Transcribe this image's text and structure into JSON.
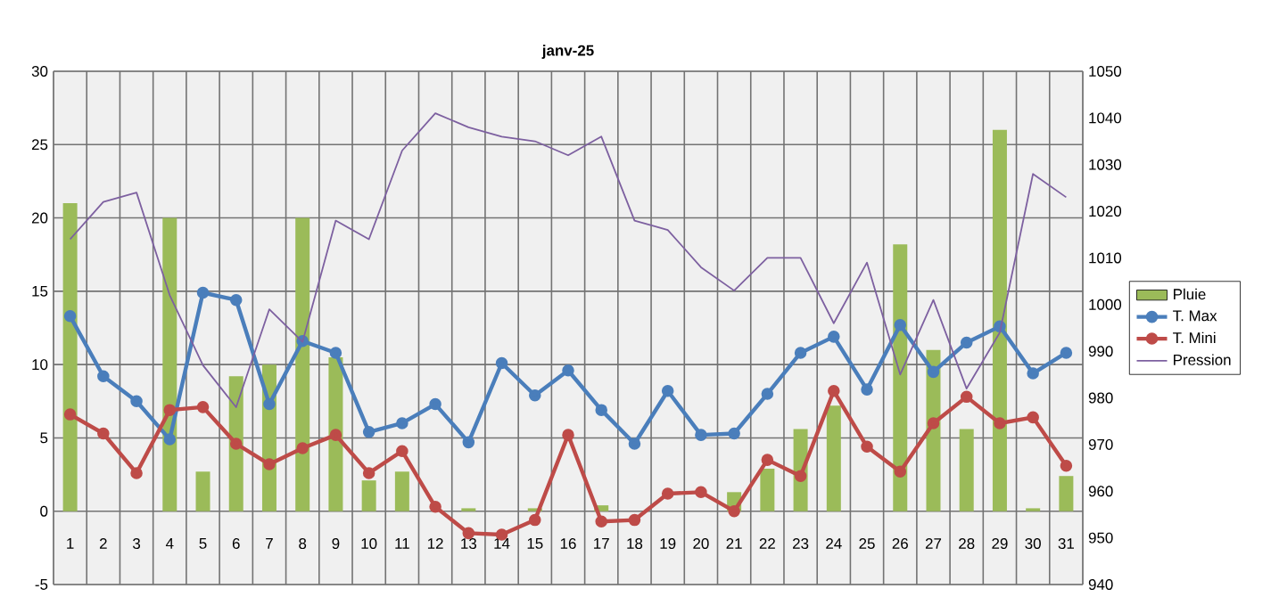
{
  "chart_data": {
    "type": "bar",
    "title": "janv-25",
    "categories": [
      "1",
      "2",
      "3",
      "4",
      "5",
      "6",
      "7",
      "8",
      "9",
      "10",
      "11",
      "12",
      "13",
      "14",
      "15",
      "16",
      "17",
      "18",
      "19",
      "20",
      "21",
      "22",
      "23",
      "24",
      "25",
      "26",
      "27",
      "28",
      "29",
      "30",
      "31"
    ],
    "series": [
      {
        "name": "Pluie",
        "color": "#9bbb59",
        "values": [
          21,
          0,
          0,
          20,
          2.7,
          9.2,
          10,
          20,
          10.5,
          2.1,
          2.7,
          0,
          0.2,
          0,
          0.2,
          0,
          0.4,
          0,
          0,
          0,
          1.3,
          2.9,
          5.6,
          7.2,
          0,
          18.2,
          11,
          5.6,
          26,
          0.2,
          2.4
        ]
      },
      {
        "name": "T. Max",
        "type": "line",
        "marker": "circle",
        "color": "#4a7ebb",
        "values": [
          13.3,
          9.2,
          7.5,
          4.9,
          14.9,
          14.4,
          7.3,
          11.6,
          10.8,
          5.4,
          6,
          7.3,
          4.7,
          10.1,
          7.9,
          9.6,
          6.9,
          4.6,
          8.2,
          5.2,
          5.3,
          8,
          10.8,
          11.9,
          8.3,
          12.7,
          9.5,
          11.5,
          12.6,
          9.4,
          10.8
        ]
      },
      {
        "name": "T. Mini",
        "type": "line",
        "marker": "circle",
        "color": "#be4b48",
        "values": [
          6.6,
          5.3,
          2.6,
          6.9,
          7.1,
          4.6,
          3.2,
          4.3,
          5.2,
          2.6,
          4.1,
          0.3,
          -1.5,
          -1.6,
          -0.6,
          5.2,
          -0.7,
          -0.6,
          1.2,
          1.3,
          0,
          3.5,
          2.4,
          8.2,
          4.4,
          2.7,
          6,
          7.8,
          6,
          6.4,
          3.1
        ]
      },
      {
        "name": "Pression",
        "type": "line",
        "marker": "none",
        "axis": "y2",
        "color": "#7d60a0",
        "values": [
          1014,
          1022,
          1024,
          1002,
          987,
          978,
          999,
          992,
          1018,
          1014,
          1033,
          1041,
          1038,
          1036,
          1035,
          1032,
          1036,
          1018,
          1016,
          1008,
          1003,
          1010,
          1010,
          996,
          1009,
          985,
          1001,
          982,
          994,
          1028,
          1023
        ]
      }
    ],
    "ylim": [
      -5,
      30
    ],
    "yticks": [
      -5,
      0,
      5,
      10,
      15,
      20,
      25,
      30
    ],
    "y2lim": [
      940,
      1050
    ],
    "y2ticks": [
      940,
      950,
      960,
      970,
      980,
      990,
      1000,
      1010,
      1020,
      1030,
      1040,
      1050
    ],
    "grid": true,
    "legend": "right"
  }
}
